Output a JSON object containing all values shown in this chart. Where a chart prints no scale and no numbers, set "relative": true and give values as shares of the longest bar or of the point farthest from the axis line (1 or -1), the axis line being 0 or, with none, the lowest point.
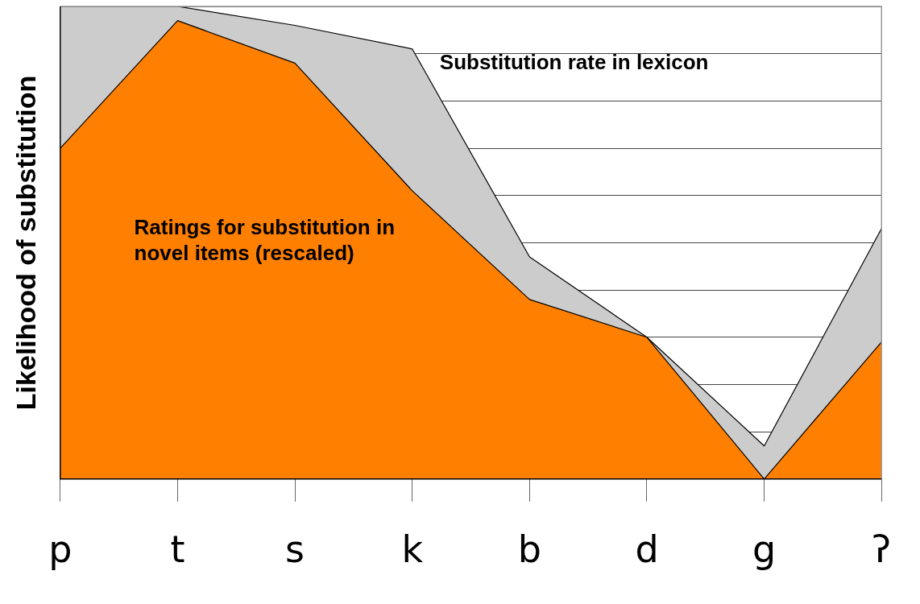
{
  "chart_data": {
    "type": "area",
    "ylabel": "Likelihood of substitution",
    "relative": true,
    "grid": "y",
    "legend": false,
    "categories": [
      "p",
      "t",
      "s",
      "k",
      "b",
      "d",
      "g",
      "ʔ"
    ],
    "series": [
      {
        "name": "Substitution rate in lexicon",
        "color": "#cccccc",
        "values": [
          1.0,
          1.0,
          0.96,
          0.91,
          0.47,
          0.3,
          0.07,
          0.53
        ]
      },
      {
        "name": "Ratings for substitution in novel items (rescaled)",
        "color": "#ff7f00",
        "values": [
          0.7,
          0.97,
          0.88,
          0.61,
          0.38,
          0.3,
          0,
          0.29
        ]
      }
    ]
  }
}
